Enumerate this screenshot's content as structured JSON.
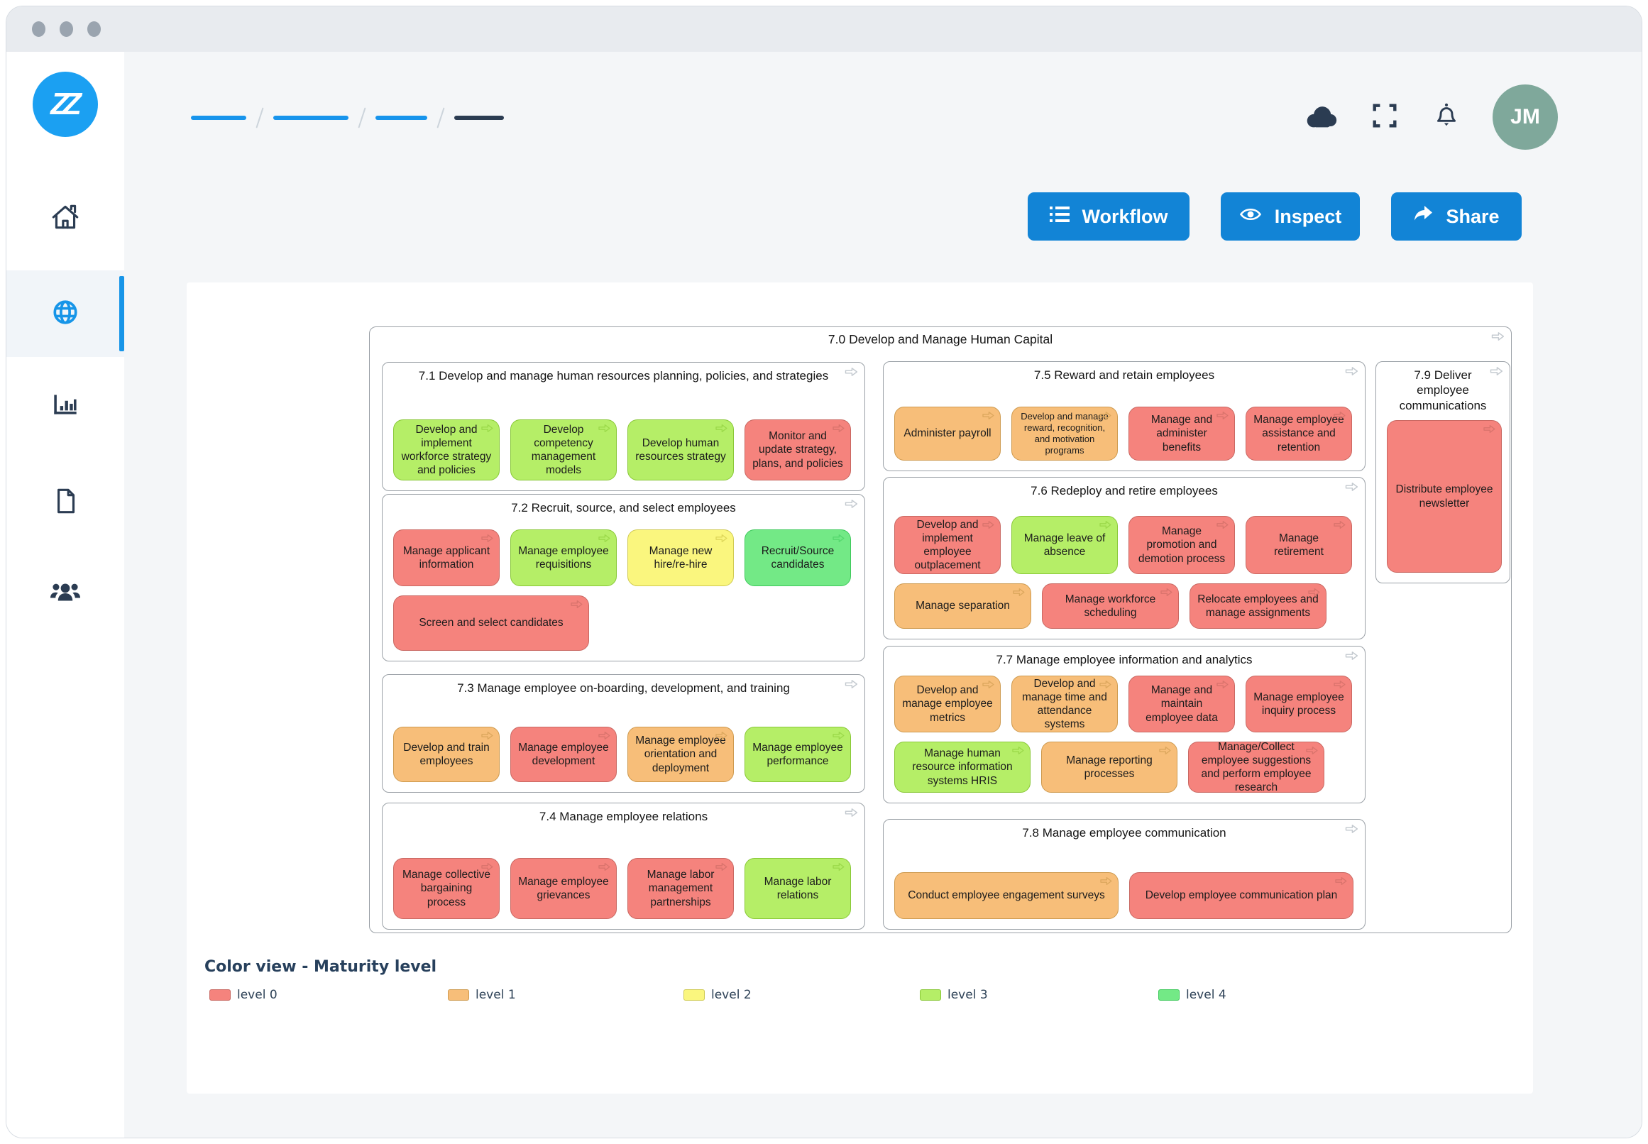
{
  "header": {
    "avatar": "JM",
    "icons": [
      "cloud-icon",
      "fullscreen-icon",
      "bell-icon"
    ],
    "breadcrumb_segments": 4
  },
  "sidebar": {
    "logo_text": "ZZ",
    "items": [
      {
        "icon": "home"
      },
      {
        "icon": "globe",
        "active": true
      },
      {
        "icon": "bar-chart"
      },
      {
        "icon": "document"
      },
      {
        "icon": "users"
      }
    ]
  },
  "toolbar": {
    "buttons": [
      {
        "id": "workflow",
        "label": "Workflow",
        "icon": "list-icon"
      },
      {
        "id": "inspect",
        "label": "Inspect",
        "icon": "eye-icon"
      },
      {
        "id": "share",
        "label": "Share",
        "icon": "share-icon"
      }
    ]
  },
  "maturity_levels": [
    {
      "label": "level 0",
      "color": "#F5837D",
      "border": "#C96862",
      "arrow": "#D9736C"
    },
    {
      "label": "level 1",
      "color": "#F7BE79",
      "border": "#CE9A4F",
      "arrow": "#DCA75D"
    },
    {
      "label": "level 2",
      "color": "#FAF67E",
      "border": "#CFCA52",
      "arrow": "#DED75A"
    },
    {
      "label": "level 3",
      "color": "#B5EE67",
      "border": "#89C838",
      "arrow": "#9BD94A"
    },
    {
      "label": "level 4",
      "color": "#73E986",
      "border": "#3FC95C",
      "arrow": "#55D86E"
    }
  ],
  "diagram": {
    "title": "7.0 Develop and Manage Human Capital",
    "sections": [
      {
        "id": "7.1",
        "title": "7.1 Develop and manage human resources planning, policies, and strategies",
        "rows": [
          [
            {
              "label": "Develop and implement workforce strategy and policies",
              "level": 3
            },
            {
              "label": "Develop competency management models",
              "level": 3
            },
            {
              "label": "Develop human resources strategy",
              "level": 3
            },
            {
              "label": "Monitor and update strategy, plans, and policies",
              "level": 0
            }
          ]
        ]
      },
      {
        "id": "7.2",
        "title": "7.2 Recruit, source, and select employees",
        "rows": [
          [
            {
              "label": "Manage applicant information",
              "level": 0
            },
            {
              "label": "Manage employee requisitions",
              "level": 3
            },
            {
              "label": "Manage new hire/re-hire",
              "level": 2
            },
            {
              "label": "Recruit/Source candidates",
              "level": 4
            }
          ],
          [
            {
              "label": "Screen and select candidates",
              "level": 0
            }
          ]
        ]
      },
      {
        "id": "7.3",
        "title": "7.3 Manage employee on-boarding, development, and training",
        "rows": [
          [
            {
              "label": "Develop and train employees",
              "level": 1
            },
            {
              "label": "Manage employee development",
              "level": 0
            },
            {
              "label": "Manage employee orientation and deployment",
              "level": 1
            },
            {
              "label": "Manage employee performance",
              "level": 3
            }
          ]
        ]
      },
      {
        "id": "7.4",
        "title": "7.4 Manage employee relations",
        "rows": [
          [
            {
              "label": "Manage collective bargaining process",
              "level": 0
            },
            {
              "label": "Manage employee grievances",
              "level": 0
            },
            {
              "label": "Manage labor management partnerships",
              "level": 0
            },
            {
              "label": "Manage labor relations",
              "level": 3
            }
          ]
        ]
      },
      {
        "id": "7.5",
        "title": "7.5 Reward and retain employees",
        "rows": [
          [
            {
              "label": "Administer payroll",
              "level": 1
            },
            {
              "label": "Develop and manage reward, recognition, and motivation programs",
              "level": 1,
              "small": true
            },
            {
              "label": "Manage and administer benefits",
              "level": 0
            },
            {
              "label": "Manage employee assistance and retention",
              "level": 0
            }
          ]
        ]
      },
      {
        "id": "7.6",
        "title": "7.6 Redeploy and retire employees",
        "rows": [
          [
            {
              "label": "Develop and implement employee outplacement",
              "level": 0
            },
            {
              "label": "Manage leave of absence",
              "level": 3
            },
            {
              "label": "Manage promotion and demotion process",
              "level": 0
            },
            {
              "label": "Manage retirement",
              "level": 0
            }
          ],
          [
            {
              "label": "Manage separation",
              "level": 1
            },
            {
              "label": "Manage workforce scheduling",
              "level": 0
            },
            {
              "label": "Relocate employees and manage assignments",
              "level": 0
            }
          ]
        ]
      },
      {
        "id": "7.7",
        "title": "7.7 Manage employee information and analytics",
        "rows": [
          [
            {
              "label": "Develop and manage employee metrics",
              "level": 1
            },
            {
              "label": "Develop and manage time and attendance systems",
              "level": 1
            },
            {
              "label": "Manage and maintain employee data",
              "level": 0
            },
            {
              "label": "Manage employee inquiry process",
              "level": 0
            }
          ],
          [
            {
              "label": "Manage human resource information systems HRIS",
              "level": 3
            },
            {
              "label": "Manage reporting processes",
              "level": 1
            },
            {
              "label": "Manage/Collect employee suggestions and perform employee research",
              "level": 0
            }
          ]
        ]
      },
      {
        "id": "7.8",
        "title": "7.8 Manage employee communication",
        "rows": [
          [
            {
              "label": "Conduct employee engagement surveys",
              "level": 1
            },
            {
              "label": "Develop employee communication plan",
              "level": 0
            }
          ]
        ]
      },
      {
        "id": "7.9",
        "title": "7.9 Deliver employee communications",
        "rows": [
          [
            {
              "label": "Distribute employee newsletter",
              "level": 0
            }
          ]
        ]
      }
    ]
  },
  "legend": {
    "title": "Color view - Maturity level"
  }
}
